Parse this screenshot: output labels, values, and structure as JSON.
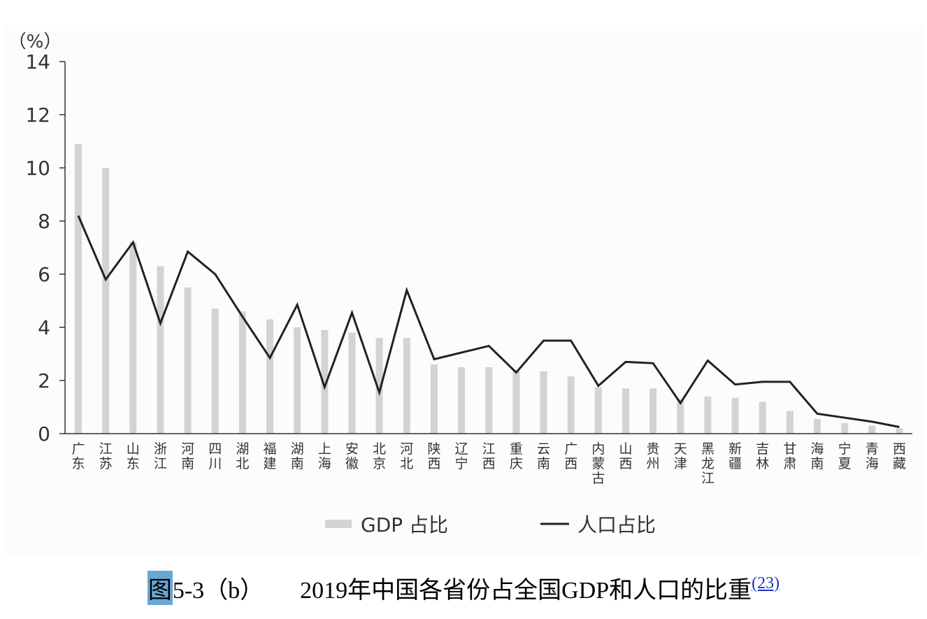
{
  "chart_data": {
    "type": "bar+line",
    "unit_label": "（%）",
    "ylim": [
      0,
      14
    ],
    "yticks": [
      0,
      2,
      4,
      6,
      8,
      10,
      12,
      14
    ],
    "categories": [
      "广东",
      "江苏",
      "山东",
      "浙江",
      "河南",
      "四川",
      "湖北",
      "福建",
      "湖南",
      "上海",
      "安徽",
      "北京",
      "河北",
      "陕西",
      "辽宁",
      "江西",
      "重庆",
      "云南",
      "广西",
      "内蒙古",
      "山西",
      "贵州",
      "天津",
      "黑龙江",
      "新疆",
      "吉林",
      "甘肃",
      "海南",
      "宁夏",
      "青海",
      "西藏"
    ],
    "series": [
      {
        "name": "GDP 占比",
        "kind": "bar",
        "color": "#d3d3d3",
        "values": [
          10.9,
          10.0,
          7.2,
          6.3,
          5.5,
          4.7,
          4.6,
          4.3,
          4.0,
          3.9,
          3.8,
          3.6,
          3.6,
          2.6,
          2.5,
          2.5,
          2.4,
          2.35,
          2.15,
          1.75,
          1.7,
          1.7,
          1.3,
          1.4,
          1.35,
          1.2,
          0.85,
          0.55,
          0.4,
          0.3,
          0.2
        ]
      },
      {
        "name": "人口占比",
        "kind": "line",
        "color": "#222222",
        "values": [
          8.2,
          5.8,
          7.2,
          4.15,
          6.85,
          6.0,
          4.4,
          2.85,
          4.85,
          1.75,
          4.55,
          1.55,
          5.4,
          2.8,
          3.05,
          3.3,
          2.3,
          3.5,
          3.5,
          1.8,
          2.7,
          2.65,
          1.15,
          2.75,
          1.85,
          1.95,
          1.95,
          0.75,
          0.6,
          0.45,
          0.25
        ]
      }
    ],
    "legend_position": "bottom"
  },
  "caption": {
    "fig_char": "图",
    "number": "5-3（b）",
    "title": "2019年中国各省份占全国GDP和人口的比重",
    "ref": "(23)"
  }
}
